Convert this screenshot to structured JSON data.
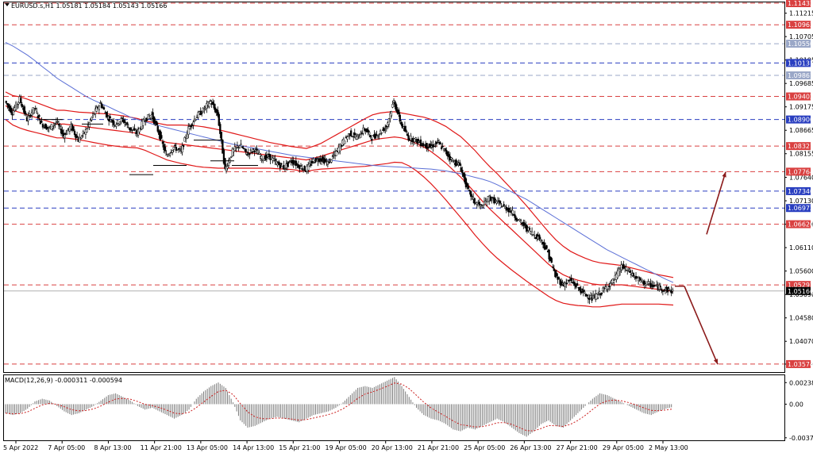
{
  "header": {
    "symbol_line": "EURUSD.s,H1  1.05181 1.05184 1.05143 1.05166"
  },
  "macd_header": "MACD(12,26,9) -0.000311 -0.000594",
  "chart_data": [
    {
      "type": "candlestick",
      "panel": "price",
      "symbol": "EURUSD.s",
      "timeframe": "H1",
      "ohlc_header": {
        "open": 1.05181,
        "high": 1.05184,
        "low": 1.05143,
        "close": 1.05166
      },
      "ylim": [
        1.034,
        1.1145
      ],
      "y_ticks": [
        "1.11433",
        "1.11215",
        "1.10705",
        "1.10195",
        "1.09685",
        "1.09175",
        "1.08665",
        "1.08155",
        "1.07640",
        "1.07130",
        "1.06620",
        "1.06110",
        "1.05600",
        "1.05090",
        "1.04580",
        "1.04070",
        "1.03574"
      ],
      "x_ticks": [
        "5 Apr 2022",
        "7 Apr 05:00",
        "8 Apr 13:00",
        "11 Apr 21:00",
        "13 Apr 05:00",
        "14 Apr 13:00",
        "15 Apr 21:00",
        "19 Apr 05:00",
        "20 Apr 13:00",
        "21 Apr 21:00",
        "25 Apr 05:00",
        "26 Apr 13:00",
        "27 Apr 21:00",
        "29 Apr 05:00",
        "2 May 13:00"
      ],
      "current_price": "1.05166",
      "level_lines": [
        {
          "price": 1.11433,
          "label": "1.11433",
          "color": "#d94040",
          "style": "dash"
        },
        {
          "price": 1.10963,
          "label": "1.10963",
          "color": "#d94040",
          "style": "dash"
        },
        {
          "price": 1.1055,
          "label": "1.10550",
          "color": "#9aa7c7",
          "style": "dash"
        },
        {
          "price": 1.10131,
          "label": "1.10131",
          "color": "#2a3fc0",
          "style": "dash"
        },
        {
          "price": 1.09861,
          "label": "1.09861",
          "color": "#9aa7c7",
          "style": "dash"
        },
        {
          "price": 1.09402,
          "label": "1.09402",
          "color": "#d94040",
          "style": "dash"
        },
        {
          "price": 1.089,
          "label": "1.08900",
          "color": "#2a3fc0",
          "style": "dash"
        },
        {
          "price": 1.08321,
          "label": "1.08321",
          "color": "#d94040",
          "style": "dash"
        },
        {
          "price": 1.07764,
          "label": "1.07764",
          "color": "#d94040",
          "style": "dash"
        },
        {
          "price": 1.0734,
          "label": "1.07340",
          "color": "#2a3fc0",
          "style": "dash"
        },
        {
          "price": 1.06972,
          "label": "1.06972",
          "color": "#2a3fc0",
          "style": "dash"
        },
        {
          "price": 1.0662,
          "label": "1.06620",
          "color": "#d94040",
          "style": "dash"
        },
        {
          "price": 1.05297,
          "label": "1.05297",
          "color": "#d94040",
          "style": "dash"
        },
        {
          "price": 1.03574,
          "label": "1.03574",
          "color": "#d94040",
          "style": "dash"
        }
      ],
      "bid_line": {
        "price": 1.05166,
        "color": "#b0b0b0"
      },
      "price_path": [
        1.093,
        1.0905,
        1.0935,
        1.089,
        1.0915,
        1.088,
        1.087,
        1.0885,
        1.0855,
        1.0875,
        1.0845,
        1.0865,
        1.09,
        1.0925,
        1.0895,
        1.088,
        1.089,
        1.087,
        1.086,
        1.089,
        1.09,
        1.086,
        1.081,
        1.083,
        1.082,
        1.087,
        1.0895,
        1.091,
        1.093,
        1.09,
        1.078,
        1.082,
        1.0835,
        1.0815,
        1.0825,
        1.0805,
        1.081,
        1.0795,
        1.0785,
        1.08,
        1.079,
        1.078,
        1.08,
        1.0805,
        1.0795,
        1.0815,
        1.084,
        1.086,
        1.085,
        1.087,
        1.085,
        1.086,
        1.0875,
        1.093,
        1.088,
        1.085,
        1.0845,
        1.0835,
        1.083,
        1.084,
        1.082,
        1.08,
        1.079,
        1.074,
        1.071,
        1.07,
        1.072,
        1.071,
        1.07,
        1.069,
        1.067,
        1.0655,
        1.064,
        1.063,
        1.06,
        1.055,
        1.053,
        1.054,
        1.0525,
        1.051,
        1.05,
        1.051,
        1.0525,
        1.054,
        1.057,
        1.056,
        1.0545,
        1.0535,
        1.053,
        1.0525,
        1.052,
        1.0516
      ],
      "middle_band": [
        1.092,
        1.091,
        1.0905,
        1.09,
        1.0895,
        1.089,
        1.0885,
        1.088,
        1.088,
        1.0878,
        1.0876,
        1.0874,
        1.0872,
        1.087,
        1.0868,
        1.0866,
        1.0864,
        1.0862,
        1.086,
        1.0855,
        1.085,
        1.0845,
        1.084,
        1.0838,
        1.0836,
        1.0834,
        1.0832,
        1.083,
        1.0828,
        1.0826,
        1.0824,
        1.0822,
        1.082,
        1.0818,
        1.0816,
        1.0814,
        1.0812,
        1.081,
        1.0808,
        1.0806,
        1.0804,
        1.0802,
        1.0806,
        1.081,
        1.0815,
        1.082,
        1.0825,
        1.083,
        1.0835,
        1.084,
        1.0845,
        1.0848,
        1.085,
        1.0852,
        1.085,
        1.0845,
        1.0838,
        1.083,
        1.082,
        1.0808,
        1.0795,
        1.078,
        1.0765,
        1.0748,
        1.073,
        1.0712,
        1.0695,
        1.068,
        1.0665,
        1.065,
        1.0635,
        1.062,
        1.0605,
        1.059,
        1.0575,
        1.0562,
        1.0552,
        1.0545,
        1.054,
        1.0536,
        1.0532,
        1.053,
        1.053,
        1.053,
        1.053,
        1.0528,
        1.0526,
        1.0524,
        1.0522,
        1.052,
        1.0518,
        1.0516
      ],
      "band_width": [
        0.003,
        0.0032,
        0.0034,
        0.0034,
        0.0033,
        0.0032,
        0.0031,
        0.003,
        0.003,
        0.003,
        0.003,
        0.0031,
        0.0032,
        0.0033,
        0.0034,
        0.0034,
        0.0034,
        0.0033,
        0.0032,
        0.0032,
        0.0034,
        0.0036,
        0.0038,
        0.004,
        0.0042,
        0.0043,
        0.0044,
        0.0044,
        0.0043,
        0.0042,
        0.004,
        0.0038,
        0.0036,
        0.0034,
        0.0032,
        0.003,
        0.0028,
        0.0027,
        0.0026,
        0.0025,
        0.0025,
        0.0025,
        0.0026,
        0.0028,
        0.0032,
        0.0036,
        0.004,
        0.0044,
        0.0048,
        0.0052,
        0.0055,
        0.0056,
        0.0056,
        0.0055,
        0.0054,
        0.0056,
        0.006,
        0.0065,
        0.007,
        0.0075,
        0.008,
        0.0084,
        0.0088,
        0.009,
        0.0092,
        0.0092,
        0.0092,
        0.0092,
        0.009,
        0.0088,
        0.0085,
        0.0082,
        0.0078,
        0.0074,
        0.007,
        0.0066,
        0.0062,
        0.0058,
        0.0055,
        0.0052,
        0.005,
        0.0048,
        0.0046,
        0.0044,
        0.0042,
        0.004,
        0.0038,
        0.0036,
        0.0034,
        0.0032,
        0.0031,
        0.003
      ],
      "ma_line": [
        1.1058,
        1.105,
        1.104,
        1.103,
        1.1018,
        1.1005,
        1.0993,
        1.098,
        1.097,
        1.096,
        1.095,
        1.094,
        1.0932,
        1.0925,
        1.0918,
        1.091,
        1.0903,
        1.0895,
        1.089,
        1.0885,
        1.088,
        1.0876,
        1.0872,
        1.0868,
        1.0864,
        1.086,
        1.0856,
        1.0852,
        1.0848,
        1.0844,
        1.084,
        1.0836,
        1.0833,
        1.083,
        1.0827,
        1.0824,
        1.0821,
        1.0818,
        1.0815,
        1.0812,
        1.081,
        1.0808,
        1.0806,
        1.0804,
        1.0802,
        1.08,
        1.0798,
        1.0796,
        1.0794,
        1.0792,
        1.079,
        1.0789,
        1.0788,
        1.0787,
        1.0786,
        1.0785,
        1.0784,
        1.0783,
        1.0782,
        1.078,
        1.0778,
        1.0775,
        1.0772,
        1.0768,
        1.0764,
        1.076,
        1.0755,
        1.0748,
        1.074,
        1.0732,
        1.0724,
        1.0716,
        1.0706,
        1.0696,
        1.0686,
        1.0676,
        1.0666,
        1.0656,
        1.0646,
        1.0636,
        1.0626,
        1.0616,
        1.0606,
        1.0598,
        1.059,
        1.0582,
        1.0574,
        1.0566,
        1.0558,
        1.055,
        1.0542,
        1.0535
      ],
      "scenario_arrows": [
        {
          "from": 1.0527,
          "to": 1.0776,
          "direction": "up",
          "color": "#8b1a1a"
        },
        {
          "from": 1.0527,
          "to": 1.0357,
          "direction": "down",
          "color": "#8b1a1a"
        }
      ],
      "colors": {
        "bands": "#e01818",
        "ma": "#5b6fd6",
        "candles": "#000000"
      }
    },
    {
      "type": "bar",
      "panel": "macd",
      "title": "MACD(12,26,9) -0.000311 -0.000594",
      "ylim": [
        -0.004,
        0.0032
      ],
      "y_ticks": [
        "0.002387",
        "0.00",
        "-0.003721"
      ],
      "histogram": [
        -0.001,
        -0.0012,
        -0.001,
        -0.0005,
        0.0003,
        0.0006,
        0.0004,
        -0.0002,
        -0.0008,
        -0.0012,
        -0.001,
        -0.0006,
        -0.0002,
        0.0004,
        0.001,
        0.0012,
        0.0008,
        0.0004,
        -0.0002,
        -0.0006,
        -0.0004,
        -0.0008,
        -0.0012,
        -0.0016,
        -0.0012,
        -0.0006,
        0.0006,
        0.0014,
        0.002,
        0.0024,
        0.0018,
        0.0002,
        -0.0018,
        -0.0026,
        -0.0024,
        -0.002,
        -0.0016,
        -0.0014,
        -0.0016,
        -0.0018,
        -0.002,
        -0.0016,
        -0.0012,
        -0.001,
        -0.0008,
        -0.0004,
        0.0002,
        0.001,
        0.0018,
        0.002,
        0.0018,
        0.0022,
        0.0026,
        0.003,
        0.002,
        0.0008,
        -0.0004,
        -0.0012,
        -0.0016,
        -0.0018,
        -0.0022,
        -0.0028,
        -0.003,
        -0.0026,
        -0.0028,
        -0.0024,
        -0.002,
        -0.0016,
        -0.002,
        -0.0026,
        -0.0032,
        -0.0036,
        -0.003,
        -0.0022,
        -0.0018,
        -0.0024,
        -0.0026,
        -0.0018,
        -0.001,
        -0.0002,
        0.0006,
        0.0012,
        0.001,
        0.0006,
        0.0002,
        -0.0002,
        -0.0006,
        -0.001,
        -0.0012,
        -0.0008,
        -0.0005,
        -0.0003
      ],
      "signal_color": "#cc2222",
      "histogram_color": "#7a7a7a"
    }
  ]
}
